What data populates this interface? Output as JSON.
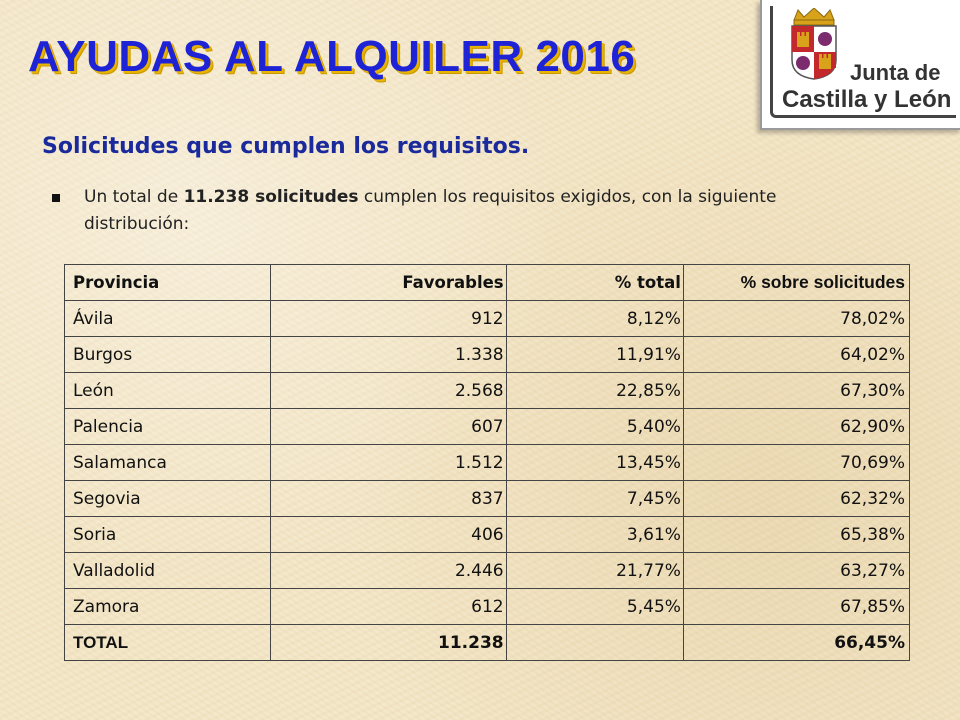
{
  "title": "AYUDAS AL ALQUILER 2016",
  "logo": {
    "line1": "Junta de",
    "line2": "Castilla y León",
    "colors": {
      "red": "#c3282c",
      "gold": "#d8a21a",
      "purple": "#7b2b6e"
    }
  },
  "subtitle": "Solicitudes que cumplen los requisitos.",
  "bullet": {
    "prefix": "Un total de ",
    "highlight": "11.238 solicitudes",
    "suffix": " cumplen los requisitos exigidos, con la siguiente distribución:"
  },
  "table": {
    "headers": [
      "Provincia",
      "Favorables",
      "% total",
      "% sobre solicitudes"
    ],
    "rows": [
      [
        "Ávila",
        "912",
        "8,12%",
        "78,02%"
      ],
      [
        "Burgos",
        "1.338",
        "11,91%",
        "64,02%"
      ],
      [
        "León",
        "2.568",
        "22,85%",
        "67,30%"
      ],
      [
        "Palencia",
        "607",
        "5,40%",
        "62,90%"
      ],
      [
        "Salamanca",
        "1.512",
        "13,45%",
        "70,69%"
      ],
      [
        "Segovia",
        "837",
        "7,45%",
        "62,32%"
      ],
      [
        "Soria",
        "406",
        "3,61%",
        "65,38%"
      ],
      [
        "Valladolid",
        "2.446",
        "21,77%",
        "63,27%"
      ],
      [
        "Zamora",
        "612",
        "5,45%",
        "67,85%"
      ]
    ],
    "total": [
      "TOTAL",
      "11.238",
      "",
      "66,45%"
    ]
  }
}
